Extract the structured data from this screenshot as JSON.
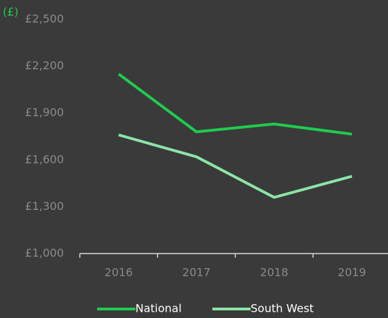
{
  "chart_data": {
    "type": "line",
    "y_axis_label": "(£)",
    "categories": [
      "2016",
      "2017",
      "2018",
      "2019"
    ],
    "series": [
      {
        "name": "National",
        "color": "#1fcc4f",
        "values": [
          2150,
          1780,
          1830,
          1765
        ]
      },
      {
        "name": "South West",
        "color": "#8be6a6",
        "values": [
          1760,
          1620,
          1360,
          1495
        ]
      }
    ],
    "ylim": [
      1000,
      2500
    ],
    "yticks": [
      {
        "value": 1000,
        "label": "£1,000"
      },
      {
        "value": 1300,
        "label": "£1,300"
      },
      {
        "value": 1600,
        "label": "£1,600"
      },
      {
        "value": 1900,
        "label": "£1,900"
      },
      {
        "value": 2200,
        "label": "£2,200"
      },
      {
        "value": 2500,
        "label": "£2,500"
      }
    ],
    "grid": false
  }
}
